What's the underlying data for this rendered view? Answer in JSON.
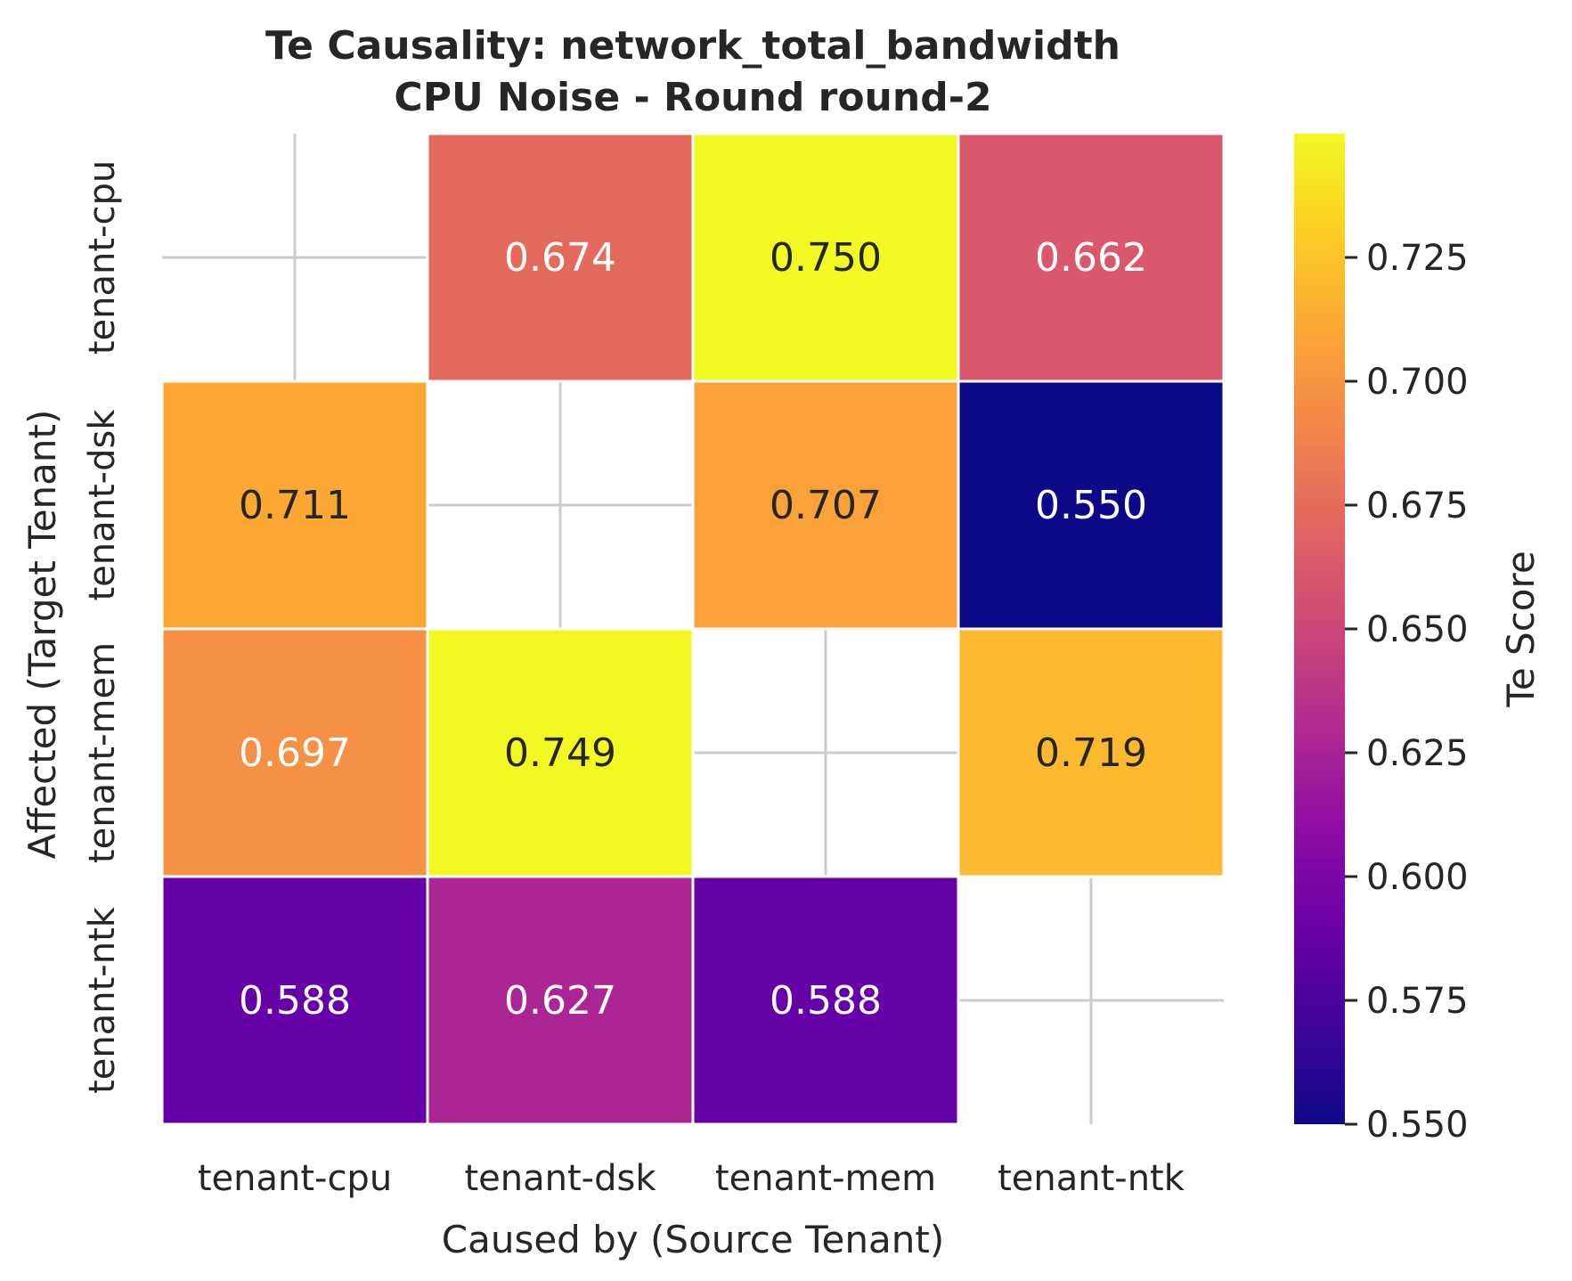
{
  "chart_data": {
    "type": "heatmap",
    "title": "Te Causality: network_total_bandwidth",
    "subtitle": "CPU Noise - Round round-2",
    "xlabel": "Caused by (Source Tenant)",
    "ylabel": "Affected (Target Tenant)",
    "x_categories": [
      "tenant-cpu",
      "tenant-dsk",
      "tenant-mem",
      "tenant-ntk"
    ],
    "y_categories": [
      "tenant-cpu",
      "tenant-dsk",
      "tenant-mem",
      "tenant-ntk"
    ],
    "values": [
      [
        null,
        0.674,
        0.75,
        0.662
      ],
      [
        0.711,
        null,
        0.707,
        0.55
      ],
      [
        0.697,
        0.749,
        null,
        0.719
      ],
      [
        0.588,
        0.627,
        0.588,
        null
      ]
    ],
    "cell_labels": [
      [
        null,
        "0.674",
        "0.750",
        "0.662"
      ],
      [
        "0.711",
        null,
        "0.707",
        "0.550"
      ],
      [
        "0.697",
        "0.749",
        null,
        "0.719"
      ],
      [
        "0.588",
        "0.627",
        "0.588",
        null
      ]
    ],
    "colormap": "plasma",
    "colorbar": {
      "label": "Te Score",
      "range": [
        0.55,
        0.75
      ],
      "ticks": [
        0.55,
        0.575,
        0.6,
        0.625,
        0.65,
        0.675,
        0.7,
        0.725
      ],
      "tick_labels": [
        "0.550",
        "0.575",
        "0.600",
        "0.625",
        "0.650",
        "0.675",
        "0.700",
        "0.725"
      ]
    },
    "grid": true,
    "colors": {
      "text_dark": "#262626",
      "text_light": "#ffffff",
      "grid": "#cccccc",
      "cell_border": "#ffffff"
    }
  }
}
